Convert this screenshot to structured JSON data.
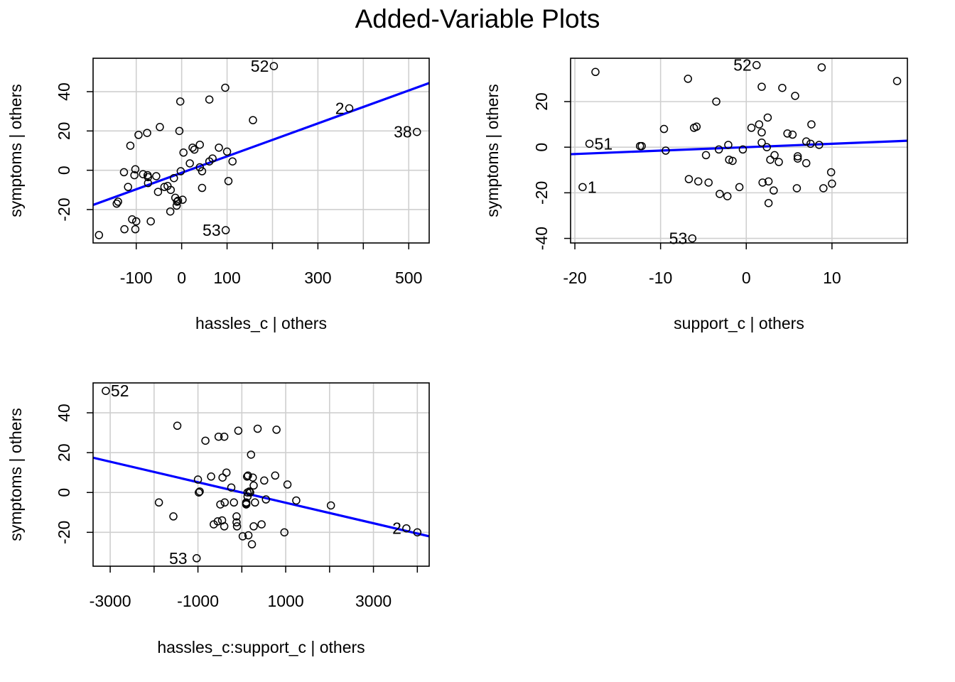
{
  "title": "Added-Variable Plots",
  "chart_data": [
    {
      "type": "scatter",
      "xlabel": "hassles_c | others",
      "ylabel": "symptoms  | others",
      "xlim": [
        -195,
        545
      ],
      "ylim": [
        -37,
        57
      ],
      "xticks": [
        -100,
        0,
        100,
        300,
        500
      ],
      "xminor": [
        200,
        400
      ],
      "yticks": [
        -20,
        0,
        20,
        40
      ],
      "grid": true,
      "line": {
        "slope": 0.0838,
        "intercept": -1.3,
        "color": "#0000ff"
      },
      "labels": [
        {
          "text": "52",
          "x": 203,
          "y": 53
        },
        {
          "text": "2",
          "x": 369,
          "y": 31.5
        },
        {
          "text": "38",
          "x": 518,
          "y": 19.5
        },
        {
          "text": "53",
          "x": 97,
          "y": -30.5
        }
      ],
      "points": [
        [
          -182,
          -33
        ],
        [
          -143,
          -17
        ],
        [
          -140,
          -16
        ],
        [
          -127,
          -1
        ],
        [
          -126,
          -30
        ],
        [
          -118,
          -8.5
        ],
        [
          -113,
          12.5
        ],
        [
          -109,
          -25
        ],
        [
          -104,
          -2.5
        ],
        [
          -102,
          0.5
        ],
        [
          -102,
          -30
        ],
        [
          -100,
          -26
        ],
        [
          -95,
          18
        ],
        [
          -85,
          -2
        ],
        [
          -76,
          19
        ],
        [
          -75,
          -2.5
        ],
        [
          -74,
          -3.5
        ],
        [
          -74,
          -6.5
        ],
        [
          -68,
          -26
        ],
        [
          -56,
          -3
        ],
        [
          -52,
          -11
        ],
        [
          -48,
          22
        ],
        [
          -38,
          -8.5
        ],
        [
          -31,
          -8
        ],
        [
          -25,
          -21
        ],
        [
          -24,
          -10
        ],
        [
          -17,
          -4
        ],
        [
          -14,
          -14
        ],
        [
          -11,
          -18
        ],
        [
          -10,
          -16
        ],
        [
          -8,
          -15.5
        ],
        [
          -5,
          20
        ],
        [
          -3,
          35
        ],
        [
          -2,
          -0.5
        ],
        [
          2,
          -15
        ],
        [
          4,
          9
        ],
        [
          18,
          3.5
        ],
        [
          24,
          11.5
        ],
        [
          28,
          10.5
        ],
        [
          40,
          1.5
        ],
        [
          40,
          13
        ],
        [
          45,
          -9
        ],
        [
          45,
          -0.5
        ],
        [
          61,
          36
        ],
        [
          61,
          4.5
        ],
        [
          68,
          6
        ],
        [
          82,
          11.5
        ],
        [
          96,
          42
        ],
        [
          100,
          9.5
        ],
        [
          103,
          -5.5
        ],
        [
          112,
          4.5
        ],
        [
          157,
          25.5
        ],
        [
          203,
          53
        ],
        [
          369,
          31.5
        ],
        [
          518,
          19.5
        ],
        [
          97,
          -30.5
        ]
      ]
    },
    {
      "type": "scatter",
      "xlabel": "support_c | others",
      "ylabel": "symptoms  | others",
      "xlim": [
        -20.5,
        18.8
      ],
      "ylim": [
        -42,
        39
      ],
      "xticks": [
        -20,
        -10,
        0,
        10
      ],
      "xminor": [],
      "yticks": [
        -40,
        -20,
        0,
        20
      ],
      "grid": true,
      "line": {
        "slope": 0.15,
        "intercept": 0.0,
        "color": "#0000ff"
      },
      "labels": [
        {
          "text": "52",
          "x": 1.2,
          "y": 36
        },
        {
          "text": "51",
          "x": -18.3,
          "y": 1.5
        },
        {
          "text": "1",
          "x": -19.1,
          "y": -17.5
        },
        {
          "text": "53",
          "x": -6.3,
          "y": -40
        }
      ],
      "points": [
        [
          -19.1,
          -17.5
        ],
        [
          -18.3,
          1.5
        ],
        [
          -17.6,
          33
        ],
        [
          -12.4,
          0.5
        ],
        [
          -12.2,
          0.5
        ],
        [
          -9.6,
          8
        ],
        [
          -9.4,
          -1.5
        ],
        [
          -6.8,
          30
        ],
        [
          -6.7,
          -14
        ],
        [
          -6.3,
          -40
        ],
        [
          -6.1,
          8.5
        ],
        [
          -5.8,
          9
        ],
        [
          -5.6,
          -15
        ],
        [
          -4.7,
          -3.5
        ],
        [
          -4.4,
          -15.5
        ],
        [
          -3.5,
          20
        ],
        [
          -3.2,
          -1
        ],
        [
          -3.1,
          -20.5
        ],
        [
          -2.2,
          -21.5
        ],
        [
          -2.1,
          1
        ],
        [
          -2,
          -5.5
        ],
        [
          -1.6,
          -6
        ],
        [
          -0.8,
          -17.5
        ],
        [
          -0.4,
          -1
        ],
        [
          0.6,
          8.5
        ],
        [
          1.2,
          36
        ],
        [
          1.5,
          10
        ],
        [
          1.8,
          26.5
        ],
        [
          1.8,
          6.5
        ],
        [
          1.8,
          2
        ],
        [
          1.9,
          -15.5
        ],
        [
          2.4,
          0
        ],
        [
          2.5,
          13
        ],
        [
          2.6,
          -15
        ],
        [
          2.6,
          -24.5
        ],
        [
          2.8,
          -5.5
        ],
        [
          3.2,
          -19
        ],
        [
          3.3,
          -3.5
        ],
        [
          3.8,
          -6.5
        ],
        [
          4.2,
          26
        ],
        [
          4.8,
          6
        ],
        [
          5.4,
          5.5
        ],
        [
          5.7,
          22.5
        ],
        [
          5.9,
          -18
        ],
        [
          6.0,
          -4
        ],
        [
          6.0,
          -5
        ],
        [
          7.0,
          -7
        ],
        [
          7.0,
          2.5
        ],
        [
          7.5,
          1.5
        ],
        [
          7.6,
          10
        ],
        [
          8.5,
          1
        ],
        [
          8.8,
          35
        ],
        [
          9.0,
          -18
        ],
        [
          9.9,
          -11
        ],
        [
          10.0,
          -16
        ],
        [
          17.6,
          29
        ]
      ]
    },
    {
      "type": "scatter",
      "xlabel": "hassles_c:support_c | others",
      "ylabel": "symptoms  | others",
      "xlim": [
        -3390,
        4270
      ],
      "ylim": [
        -37,
        55
      ],
      "xticks": [
        -3000,
        -1000,
        1000,
        3000
      ],
      "xminor": [
        -2000,
        0,
        2000,
        4000
      ],
      "yticks": [
        -20,
        0,
        20,
        40
      ],
      "grid": true,
      "line": {
        "slope": -0.00515,
        "intercept": 0.0,
        "color": "#0000ff"
      },
      "labels": [
        {
          "text": "52",
          "x": -3100,
          "y": 51
        },
        {
          "text": "2",
          "x": 3750,
          "y": -18
        },
        {
          "text": "53",
          "x": -1130,
          "y": -33
        }
      ],
      "points": [
        [
          -3100,
          51
        ],
        [
          -1890,
          -5
        ],
        [
          -1560,
          -12
        ],
        [
          -1470,
          33.5
        ],
        [
          -1030,
          -33
        ],
        [
          -1000,
          6.5
        ],
        [
          -980,
          0
        ],
        [
          -960,
          0.5
        ],
        [
          -830,
          26
        ],
        [
          -700,
          8
        ],
        [
          -640,
          -16
        ],
        [
          -550,
          -14.5
        ],
        [
          -530,
          28
        ],
        [
          -490,
          -6
        ],
        [
          -450,
          -14
        ],
        [
          -440,
          7.5
        ],
        [
          -400,
          28
        ],
        [
          -400,
          -17
        ],
        [
          -390,
          -5
        ],
        [
          -350,
          10
        ],
        [
          -240,
          2.5
        ],
        [
          -180,
          -5
        ],
        [
          -120,
          -12
        ],
        [
          -120,
          -15
        ],
        [
          -110,
          -17
        ],
        [
          -80,
          31
        ],
        [
          20,
          -22
        ],
        [
          100,
          -5
        ],
        [
          100,
          -6
        ],
        [
          100,
          -5.5
        ],
        [
          120,
          8
        ],
        [
          130,
          -2
        ],
        [
          130,
          0
        ],
        [
          140,
          8.5
        ],
        [
          150,
          -21.5
        ],
        [
          170,
          0.5
        ],
        [
          190,
          0
        ],
        [
          210,
          19
        ],
        [
          230,
          -26
        ],
        [
          250,
          7.5
        ],
        [
          270,
          3.5
        ],
        [
          270,
          -17
        ],
        [
          300,
          -5
        ],
        [
          360,
          32
        ],
        [
          450,
          -16
        ],
        [
          510,
          6
        ],
        [
          550,
          -3.5
        ],
        [
          790,
          31.5
        ],
        [
          760,
          8.5
        ],
        [
          970,
          -20
        ],
        [
          1040,
          4
        ],
        [
          1240,
          -4
        ],
        [
          2030,
          -6.5
        ],
        [
          3750,
          -18
        ],
        [
          4000,
          -20
        ]
      ]
    }
  ]
}
